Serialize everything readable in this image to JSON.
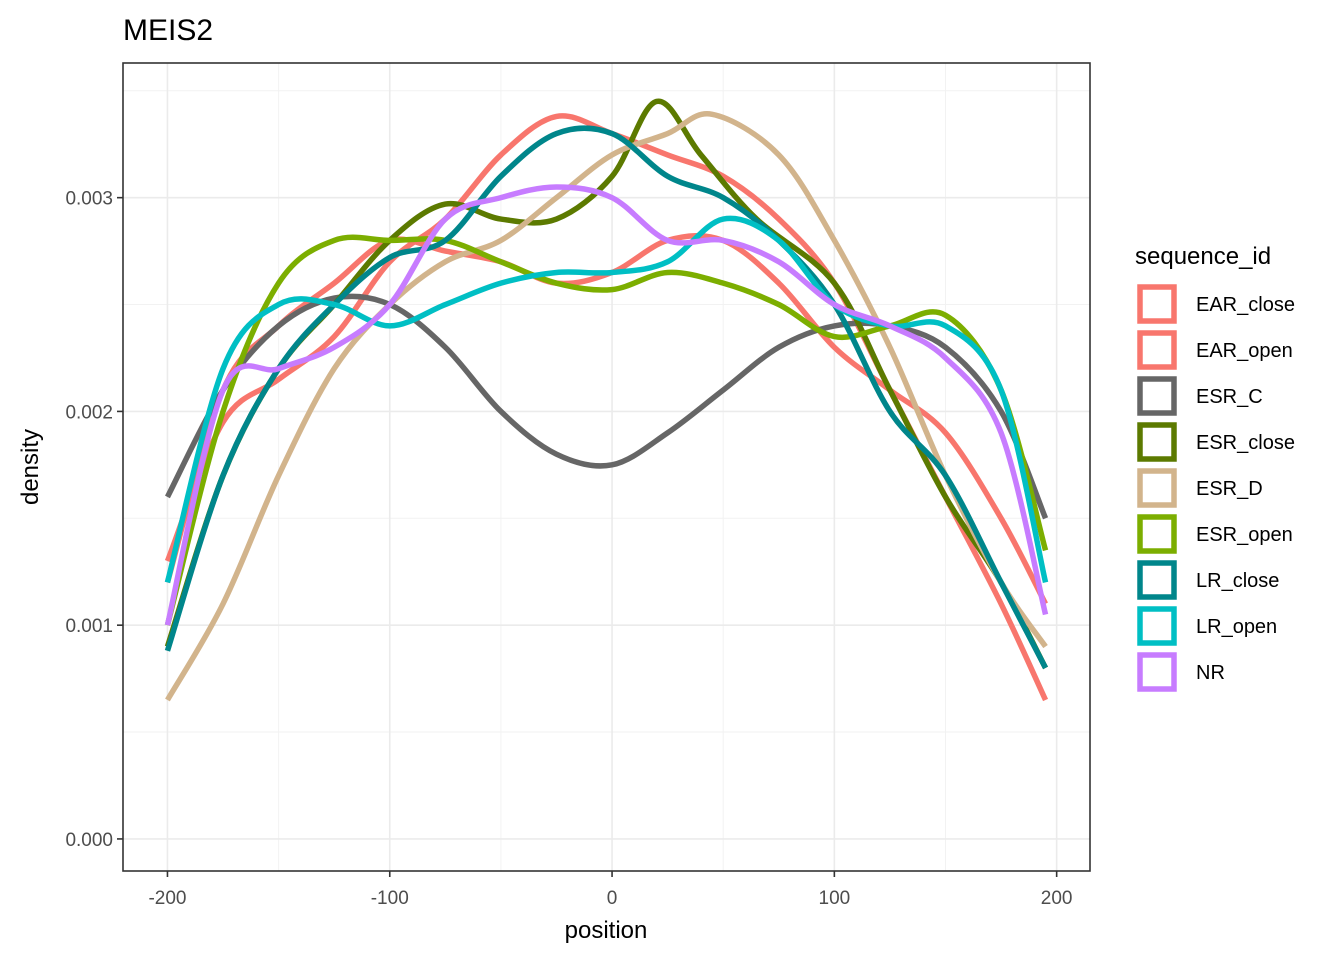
{
  "chart_data": {
    "type": "line",
    "title": "MEIS2",
    "xlabel": "position",
    "ylabel": "density",
    "xlim": [
      -220,
      215
    ],
    "ylim": [
      -0.00015,
      0.00363
    ],
    "x_ticks": [
      -200,
      -100,
      0,
      100,
      200
    ],
    "x_tick_labels": [
      "-200",
      "-100",
      "0",
      "100",
      "200"
    ],
    "y_ticks": [
      0.0,
      0.001,
      0.002,
      0.003
    ],
    "y_tick_labels": [
      "0.000",
      "0.001",
      "0.002",
      "0.003"
    ],
    "grid": true,
    "legend_title": "sequence_id",
    "legend_position": "right",
    "series": [
      {
        "name": "EAR_close",
        "color": "#F8766D",
        "x": [
          -200,
          -175,
          -150,
          -125,
          -100,
          -75,
          -50,
          -25,
          0,
          25,
          50,
          75,
          100,
          125,
          150,
          175,
          195
        ],
        "y": [
          0.0013,
          0.00195,
          0.00215,
          0.00235,
          0.0027,
          0.0029,
          0.0032,
          0.00338,
          0.0033,
          0.0032,
          0.0031,
          0.0029,
          0.0026,
          0.0021,
          0.0016,
          0.0011,
          0.00065
        ]
      },
      {
        "name": "EAR_open",
        "color": "#F8766D",
        "x": [
          -200,
          -175,
          -150,
          -125,
          -100,
          -75,
          -50,
          -25,
          0,
          25,
          50,
          75,
          100,
          125,
          150,
          175,
          195
        ],
        "y": [
          0.0012,
          0.0021,
          0.0024,
          0.0026,
          0.0028,
          0.00275,
          0.0027,
          0.0026,
          0.00265,
          0.0028,
          0.0028,
          0.0026,
          0.0023,
          0.0021,
          0.0019,
          0.0015,
          0.0011
        ]
      },
      {
        "name": "ESR_C",
        "color": "#666666",
        "x": [
          -200,
          -175,
          -150,
          -125,
          -100,
          -75,
          -50,
          -25,
          0,
          25,
          50,
          75,
          100,
          125,
          150,
          175,
          195
        ],
        "y": [
          0.0016,
          0.0021,
          0.0024,
          0.00253,
          0.0025,
          0.0023,
          0.002,
          0.0018,
          0.00175,
          0.0019,
          0.0021,
          0.0023,
          0.0024,
          0.0024,
          0.0023,
          0.002,
          0.0015
        ]
      },
      {
        "name": "ESR_close",
        "color": "#5C7A00",
        "x": [
          -200,
          -175,
          -150,
          -125,
          -100,
          -75,
          -50,
          -25,
          0,
          20,
          40,
          65,
          100,
          125,
          150,
          175,
          195
        ],
        "y": [
          0.0009,
          0.0017,
          0.0022,
          0.0025,
          0.0028,
          0.00297,
          0.0029,
          0.0029,
          0.0031,
          0.00345,
          0.0032,
          0.0029,
          0.0026,
          0.0021,
          0.0016,
          0.0012,
          0.0008
        ]
      },
      {
        "name": "ESR_D",
        "color": "#D2B48C",
        "x": [
          -200,
          -175,
          -150,
          -125,
          -100,
          -75,
          -50,
          -25,
          0,
          25,
          45,
          75,
          100,
          125,
          150,
          175,
          195
        ],
        "y": [
          0.00065,
          0.0011,
          0.0017,
          0.0022,
          0.0025,
          0.0027,
          0.0028,
          0.003,
          0.0032,
          0.0033,
          0.00339,
          0.0032,
          0.0028,
          0.0023,
          0.0017,
          0.0012,
          0.0009
        ]
      },
      {
        "name": "ESR_open",
        "color": "#7CAE00",
        "x": [
          -200,
          -175,
          -150,
          -125,
          -100,
          -75,
          -50,
          -25,
          0,
          25,
          50,
          75,
          100,
          125,
          150,
          175,
          195
        ],
        "y": [
          0.001,
          0.002,
          0.0026,
          0.0028,
          0.0028,
          0.0028,
          0.0027,
          0.0026,
          0.00257,
          0.00265,
          0.0026,
          0.0025,
          0.00235,
          0.0024,
          0.00245,
          0.0021,
          0.00135
        ]
      },
      {
        "name": "LR_close",
        "color": "#00868B",
        "x": [
          -200,
          -175,
          -150,
          -125,
          -100,
          -75,
          -50,
          -25,
          0,
          25,
          50,
          75,
          100,
          125,
          150,
          175,
          195
        ],
        "y": [
          0.00088,
          0.0017,
          0.0022,
          0.0025,
          0.00272,
          0.0028,
          0.0031,
          0.0033,
          0.0033,
          0.0031,
          0.003,
          0.0028,
          0.0025,
          0.002,
          0.0017,
          0.0012,
          0.0008
        ]
      },
      {
        "name": "LR_open",
        "color": "#00BFC4",
        "x": [
          -200,
          -175,
          -150,
          -125,
          -100,
          -75,
          -50,
          -25,
          0,
          25,
          50,
          75,
          100,
          125,
          150,
          175,
          195
        ],
        "y": [
          0.0012,
          0.0022,
          0.0025,
          0.0025,
          0.0024,
          0.0025,
          0.0026,
          0.00265,
          0.00265,
          0.0027,
          0.0029,
          0.0028,
          0.0025,
          0.0024,
          0.0024,
          0.0021,
          0.0012
        ]
      },
      {
        "name": "NR",
        "color": "#C77CFF",
        "x": [
          -200,
          -175,
          -150,
          -125,
          -100,
          -75,
          -50,
          -25,
          0,
          25,
          50,
          75,
          100,
          125,
          150,
          175,
          195
        ],
        "y": [
          0.001,
          0.0021,
          0.0022,
          0.0023,
          0.0025,
          0.0029,
          0.003,
          0.00305,
          0.003,
          0.0028,
          0.0028,
          0.0027,
          0.0025,
          0.0024,
          0.00225,
          0.0019,
          0.00105
        ]
      }
    ]
  }
}
